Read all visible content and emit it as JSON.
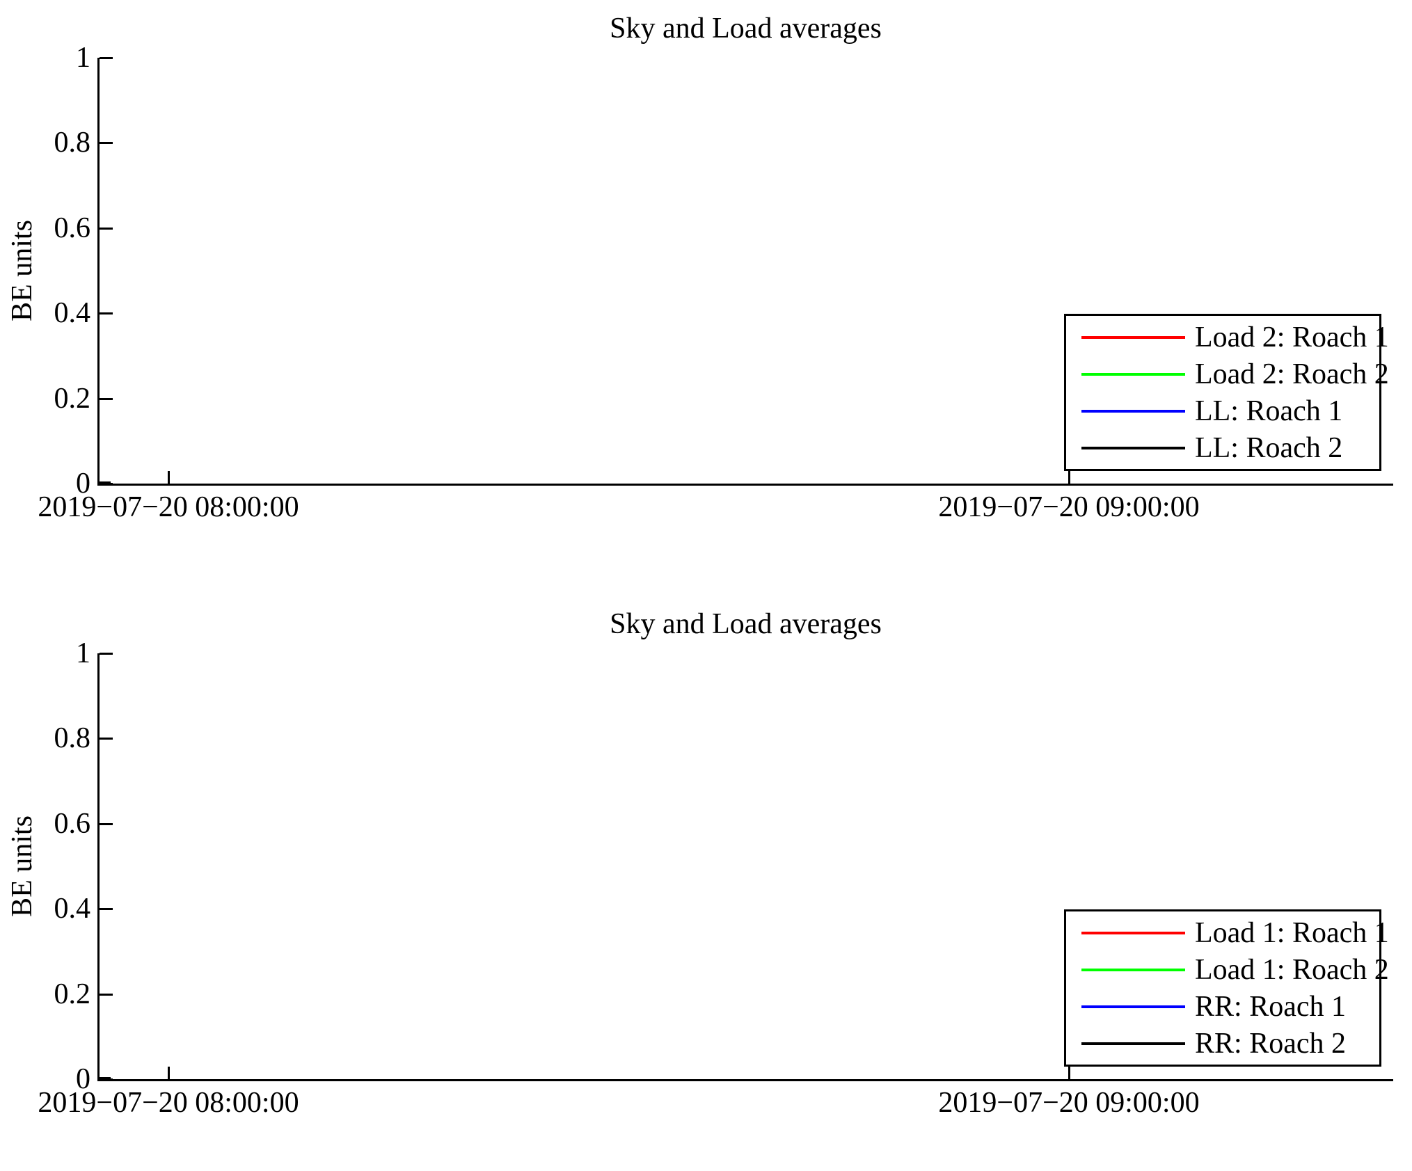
{
  "background_color": "#ffffff",
  "chart_data": [
    {
      "type": "line",
      "title": "Sky and Load averages",
      "xlabel": "",
      "ylabel": "BE units",
      "ylim": [
        0,
        1
      ],
      "yticks": [
        0,
        0.2,
        0.4,
        0.6,
        0.8,
        1
      ],
      "ytick_labels": [
        "0",
        "0.2",
        "0.4",
        "0.6",
        "0.8",
        "1"
      ],
      "xtick_labels": [
        "2019−07−20 08:00:00",
        "2019−07−20 09:00:00"
      ],
      "grid": false,
      "axis_style": "left-and-bottom-only, ticks pointing inward",
      "legend_position": "center-right inside plot",
      "series": [
        {
          "name": "Load 2: Roach 1",
          "color": "#ff0000",
          "values": [
            0,
            0
          ]
        },
        {
          "name": "Load 2: Roach 2",
          "color": "#00ff00",
          "values": [
            0,
            0
          ]
        },
        {
          "name": "LL: Roach 1",
          "color": "#0000ff",
          "values": [
            0,
            0
          ]
        },
        {
          "name": "LL: Roach 2",
          "color": "#000000",
          "values": [
            0,
            0
          ]
        }
      ],
      "visible_data_note": "all series flat at 0; only a short black segment visible at the plot's left edge on the x-axis"
    },
    {
      "type": "line",
      "title": "Sky and Load averages",
      "xlabel": "",
      "ylabel": "BE units",
      "ylim": [
        0,
        1
      ],
      "yticks": [
        0,
        0.2,
        0.4,
        0.6,
        0.8,
        1
      ],
      "ytick_labels": [
        "0",
        "0.2",
        "0.4",
        "0.6",
        "0.8",
        "1"
      ],
      "xtick_labels": [
        "2019−07−20 08:00:00",
        "2019−07−20 09:00:00"
      ],
      "grid": false,
      "axis_style": "left-and-bottom-only, ticks pointing inward",
      "legend_position": "center-right inside plot",
      "series": [
        {
          "name": "Load 1: Roach 1",
          "color": "#ff0000",
          "values": [
            0,
            0
          ]
        },
        {
          "name": "Load 1: Roach 2",
          "color": "#00ff00",
          "values": [
            0,
            0
          ]
        },
        {
          "name": "RR: Roach 1",
          "color": "#0000ff",
          "values": [
            0,
            0
          ]
        },
        {
          "name": "RR: Roach 2",
          "color": "#000000",
          "values": [
            0,
            0
          ]
        }
      ],
      "visible_data_note": "all series flat at 0; only a short black segment visible at the plot's left edge on the x-axis"
    }
  ]
}
